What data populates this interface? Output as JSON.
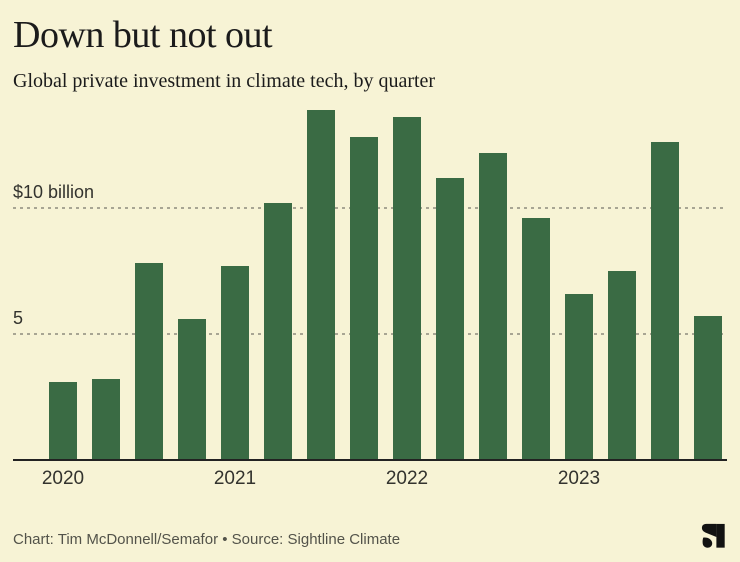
{
  "header": {
    "title": "Down but not out",
    "subtitle": "Global private investment in climate tech, by quarter"
  },
  "footer": {
    "attribution": "Chart: Tim McDonnell/Semafor • Source: Sightline Climate",
    "logo_icon": "semafor-logo"
  },
  "colors": {
    "background": "#f7f3d5",
    "bar": "#3a6b44",
    "gridline": "#a8a593",
    "axis_line": "#222222",
    "title_text": "#1b1b1b",
    "axis_text": "#33332e",
    "footer_text": "#53534a",
    "logo": "#121212"
  },
  "chart_data": {
    "type": "bar",
    "title": "Down but not out",
    "subtitle": "Global private investment in climate tech, by quarter",
    "unit": "USD billions per quarter",
    "categories": [
      "2020 Q1",
      "2020 Q2",
      "2020 Q3",
      "2020 Q4",
      "2021 Q1",
      "2021 Q2",
      "2021 Q3",
      "2021 Q4",
      "2022 Q1",
      "2022 Q2",
      "2022 Q3",
      "2022 Q4",
      "2023 Q1",
      "2023 Q2",
      "2023 Q3",
      "2023 Q4"
    ],
    "values": [
      3.1,
      3.2,
      7.8,
      5.6,
      7.7,
      10.2,
      13.9,
      12.8,
      13.6,
      11.2,
      12.2,
      9.6,
      6.6,
      7.5,
      12.6,
      5.7
    ],
    "ylim": [
      0,
      15
    ],
    "gridlines": [
      {
        "value": 5,
        "label": "5"
      },
      {
        "value": 10,
        "label": "$10 billion"
      }
    ],
    "x_ticks": [
      {
        "label": "2020",
        "category_index": 0
      },
      {
        "label": "2021",
        "category_index": 4
      },
      {
        "label": "2022",
        "category_index": 8
      },
      {
        "label": "2023",
        "category_index": 12
      }
    ],
    "grid": "horizontal dashed",
    "legend": "none"
  }
}
